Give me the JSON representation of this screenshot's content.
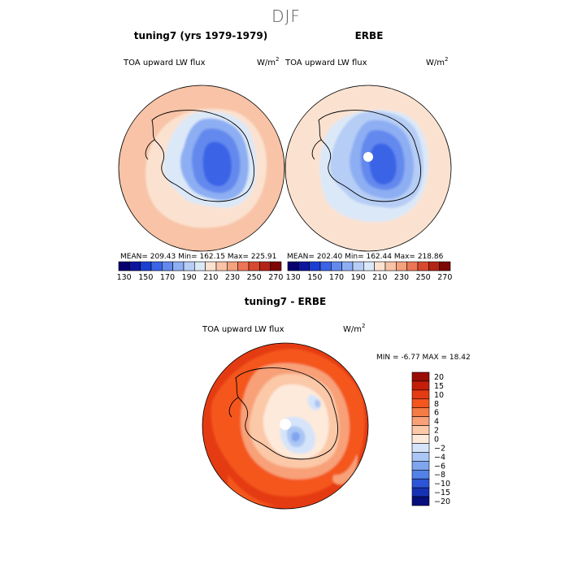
{
  "figure": {
    "title": "DJF"
  },
  "chart_data": [
    {
      "type": "heatmap",
      "projection": "south-polar-stereographic",
      "title": "tuning7 (yrs 1979-1979)",
      "variable": "TOA upward LW flux",
      "units": "W/m",
      "units_exp": "2",
      "stats": {
        "mean": 209.43,
        "min": 162.15,
        "max": 225.91
      },
      "stats_text": "MEAN= 209.43   Min= 162.15   Max= 225.91",
      "colorbar": {
        "levels": [
          130,
          140,
          150,
          160,
          170,
          180,
          190,
          200,
          210,
          220,
          230,
          240,
          250,
          260,
          270
        ],
        "tick_labels": [
          "130",
          "150",
          "170",
          "190",
          "210",
          "230",
          "250",
          "270"
        ]
      },
      "fields": {
        "ocean_far": 225,
        "ocean_mid": 220,
        "ocean_near": 215,
        "ice_edge": 200,
        "ice_outer": 185,
        "ice_mid": 175,
        "ice_core": 165,
        "ice_min": 162
      }
    },
    {
      "type": "heatmap",
      "projection": "south-polar-stereographic",
      "title": "ERBE",
      "variable": "TOA upward LW flux",
      "units": "W/m",
      "units_exp": "2",
      "stats": {
        "mean": 202.4,
        "min": 162.44,
        "max": 218.86
      },
      "stats_text": "MEAN= 202.40   Min= 162.44   Max= 218.86",
      "colorbar": {
        "levels": [
          130,
          140,
          150,
          160,
          170,
          180,
          190,
          200,
          210,
          220,
          230,
          240,
          250,
          260,
          270
        ],
        "tick_labels": [
          "130",
          "150",
          "170",
          "190",
          "210",
          "230",
          "250",
          "270"
        ]
      },
      "fields": {
        "ocean_far": 218,
        "ocean_mid": 212,
        "ocean_near": 205,
        "ice_edge": 195,
        "ice_outer": 185,
        "ice_mid": 175,
        "ice_core": 168,
        "ice_min": 162
      }
    },
    {
      "type": "heatmap",
      "projection": "south-polar-stereographic",
      "title": "tuning7 - ERBE",
      "variable": "TOA upward LW flux",
      "units": "W/m",
      "units_exp": "2",
      "stats": {
        "min": -6.77,
        "max": 18.42
      },
      "stats_text": "MIN =   -6.77 MAX =   18.42",
      "colorbar": {
        "levels": [
          -20,
          -15,
          -10,
          -8,
          -6,
          -4,
          -2,
          0,
          2,
          4,
          6,
          8,
          10,
          15,
          20
        ],
        "tick_labels": [
          "20",
          "15",
          "10",
          "8",
          "6",
          "4",
          "2",
          "0",
          "−2",
          "−4",
          "−6",
          "−8",
          "−10",
          "−15",
          "−20"
        ]
      },
      "fields": {
        "ocean_far": 12,
        "ocean_mid": 9,
        "ocean_near": 5,
        "ice_edge": 2,
        "ice_outer": 0,
        "ice_mid": -1,
        "ice_core": -3,
        "ice_min": -6
      }
    }
  ],
  "palettes": {
    "abs": [
      "#08006e",
      "#0e159d",
      "#1c3fd2",
      "#3b64e6",
      "#6389ee",
      "#8daef2",
      "#b6cdf5",
      "#dbe8f8",
      "#fbe2d0",
      "#f8c3a6",
      "#f4a17e",
      "#ec7555",
      "#d84a30",
      "#b42416",
      "#7d0806"
    ],
    "diff": [
      "#9a0d05",
      "#c41e0b",
      "#e53b12",
      "#f4561e",
      "#f67c45",
      "#f8a078",
      "#fbc8a8",
      "#fdeadb",
      "#d6e4fa",
      "#aac6f4",
      "#7fa5ee",
      "#5282e8",
      "#2c55d8",
      "#1632b4",
      "#060e7c"
    ]
  }
}
